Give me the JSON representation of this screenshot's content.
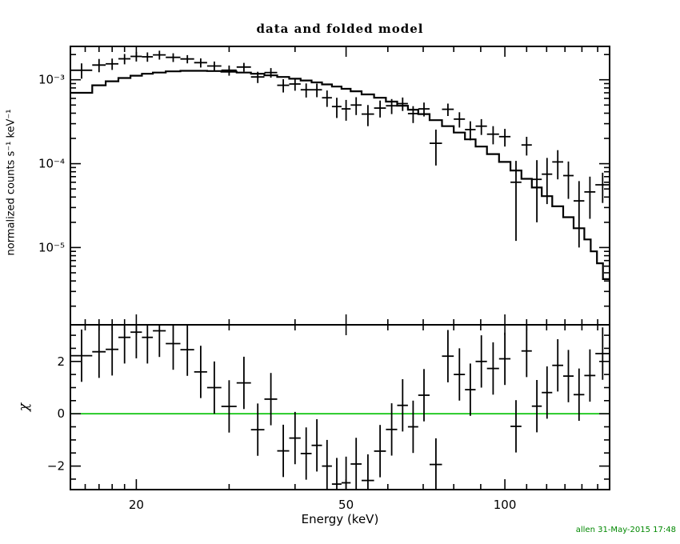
{
  "footer": {
    "text": "allen 31-May-2015 17:48"
  },
  "chart_data": {
    "type": "scatter",
    "title": "data and folded model",
    "xlabel": "Energy (keV)",
    "x_scale": "log",
    "xlim": [
      15,
      158
    ],
    "x_ticks": [
      20,
      50,
      100
    ],
    "x_tick_labels": [
      "20",
      "50",
      "100"
    ],
    "x_minor_ticks": [
      16,
      17,
      18,
      19,
      30,
      40,
      60,
      70,
      80,
      90,
      110,
      120,
      130,
      140,
      150
    ],
    "grid": false,
    "legend": "none",
    "colors": {
      "data": "#000000",
      "model": "#000000",
      "frame": "#000000",
      "zero_line": "#00c000",
      "timestamp": "#008800"
    },
    "panels": [
      {
        "name": "spectrum",
        "ylabel": "normalized counts s⁻¹ keV⁻¹",
        "y_scale": "log",
        "ylim": [
          1.2e-06,
          0.0025
        ],
        "y_ticks": [
          0.001,
          0.0001,
          1e-05
        ],
        "y_tick_labels": [
          "10⁻³",
          "10⁻⁴",
          "10⁻⁵"
        ],
        "series": [
          {
            "name": "data",
            "type": "errorbar",
            "bin_edges": [
              15,
              16.5,
              17.5,
              18.5,
              19.5,
              20.5,
              21.5,
              22.75,
              24.25,
              25.75,
              27.25,
              29,
              31,
              33,
              35,
              37,
              39,
              41,
              43,
              45,
              47,
              49,
              51,
              53.5,
              56.5,
              59.5,
              62.5,
              65.5,
              68.5,
              72,
              76,
              80,
              84,
              88,
              92.5,
              97.5,
              102.5,
              107.5,
              112.5,
              117.5,
              123,
              129,
              135,
              141.5,
              148.5,
              158
            ],
            "y": [
              0.0013,
              0.0015,
              0.00155,
              0.00178,
              0.0019,
              0.00188,
              0.00198,
              0.00185,
              0.00177,
              0.0016,
              0.00146,
              0.0013,
              0.00142,
              0.00108,
              0.00122,
              0.00086,
              0.00089,
              0.00076,
              0.00076,
              0.00061,
              0.00048,
              0.00045,
              0.0005,
              0.00039,
              0.00046,
              0.00049,
              0.00052,
              0.000395,
              0.00045,
              0.000175,
              0.000445,
              0.00034,
              0.000255,
              0.00028,
              0.000225,
              0.00021,
              6e-05,
              0.000167,
              6.5e-05,
              7.5e-05,
              0.000105,
              7.2e-05,
              3.6e-05,
              4.6e-05,
              5.6e-05
            ],
            "yerr": [
              0.00027,
              0.00027,
              0.00024,
              0.00025,
              0.00025,
              0.00024,
              0.00024,
              0.00022,
              0.0002,
              0.0002,
              0.00019,
              0.00018,
              0.00017,
              0.000165,
              0.00016,
              0.000155,
              0.00015,
              0.000145,
              0.00014,
              0.000135,
              0.00013,
              0.000125,
              0.00012,
              0.00011,
              0.000105,
              0.0001,
              9.5e-05,
              9e-05,
              8.5e-05,
              8e-05,
              7.5e-05,
              7e-05,
              6.5e-05,
              6e-05,
              5.5e-05,
              5e-05,
              4.8e-05,
              4.2e-05,
              4.5e-05,
              4.2e-05,
              4e-05,
              3.4e-05,
              2.6e-05,
              2.4e-05,
              2.2e-05
            ]
          },
          {
            "name": "folded model",
            "type": "step",
            "bin_edges": [
              15,
              16.5,
              17.5,
              18.5,
              19.5,
              20.5,
              21.5,
              22.75,
              24.25,
              25.75,
              27.25,
              29,
              31,
              33,
              35,
              37,
              39,
              41,
              43,
              45,
              47,
              49,
              51,
              53.5,
              56.5,
              59.5,
              62.5,
              65.5,
              68.5,
              72,
              76,
              80,
              84,
              88,
              92.5,
              97.5,
              102.5,
              107.5,
              112.5,
              117.5,
              123,
              129,
              135,
              141.5,
              145.5,
              149.5,
              153.5,
              158
            ],
            "y": [
              0.0007,
              0.00086,
              0.00096,
              0.00105,
              0.00112,
              0.00118,
              0.00122,
              0.00126,
              0.00128,
              0.00128,
              0.00127,
              0.00125,
              0.00122,
              0.00118,
              0.00113,
              0.00108,
              0.00103,
              0.00098,
              0.00093,
              0.00088,
              0.00083,
              0.00078,
              0.00073,
              0.00067,
              0.00061,
              0.00055,
              0.00049,
              0.00044,
              0.00039,
              0.00033,
              0.00028,
              0.000235,
              0.000195,
              0.00016,
              0.00013,
              0.000105,
              8.3e-05,
              6.6e-05,
              5.2e-05,
              4.1e-05,
              3.1e-05,
              2.3e-05,
              1.7e-05,
              1.25e-05,
              9e-06,
              6.5e-06,
              4.2e-06
            ]
          }
        ]
      },
      {
        "name": "residuals",
        "ylabel": "χ",
        "y_scale": "linear",
        "ylim": [
          -2.9,
          3.4
        ],
        "y_ticks": [
          -2,
          0,
          2
        ],
        "y_tick_labels": [
          "−2",
          "0",
          "2"
        ],
        "y_minor_ticks": [
          -2.5,
          -1.5,
          -1,
          -0.5,
          0.5,
          1,
          1.5,
          2.5,
          3
        ],
        "series": [
          {
            "name": "chi",
            "type": "errorbar",
            "bin_edges": [
              15,
              16.5,
              17.5,
              18.5,
              19.5,
              20.5,
              21.5,
              22.75,
              24.25,
              25.75,
              27.25,
              29,
              31,
              33,
              35,
              37,
              39,
              41,
              43,
              45,
              47,
              49,
              51,
              53.5,
              56.5,
              59.5,
              62.5,
              65.5,
              68.5,
              72,
              76,
              80,
              84,
              88,
              92.5,
              97.5,
              102.5,
              107.5,
              112.5,
              117.5,
              123,
              129,
              135,
              141.5,
              148.5,
              158
            ],
            "y": [
              2.22,
              2.37,
              2.46,
              2.92,
              3.12,
              2.92,
              3.17,
              2.68,
              2.45,
              1.6,
              1.0,
              0.28,
              1.18,
              -0.61,
              0.56,
              -1.42,
              -0.93,
              -1.52,
              -1.21,
              -2.0,
              -2.69,
              -2.64,
              -1.92,
              -2.55,
              -1.43,
              -0.6,
              0.32,
              -0.5,
              0.71,
              -1.94,
              2.2,
              1.5,
              0.92,
              2.0,
              1.73,
              2.1,
              -0.48,
              2.4,
              0.29,
              0.81,
              1.85,
              1.44,
              0.73,
              1.46,
              2.3
            ],
            "yerr": 1
          },
          {
            "name": "zero line",
            "type": "hline",
            "y": 0,
            "color_key": "zero_line"
          }
        ]
      }
    ]
  }
}
